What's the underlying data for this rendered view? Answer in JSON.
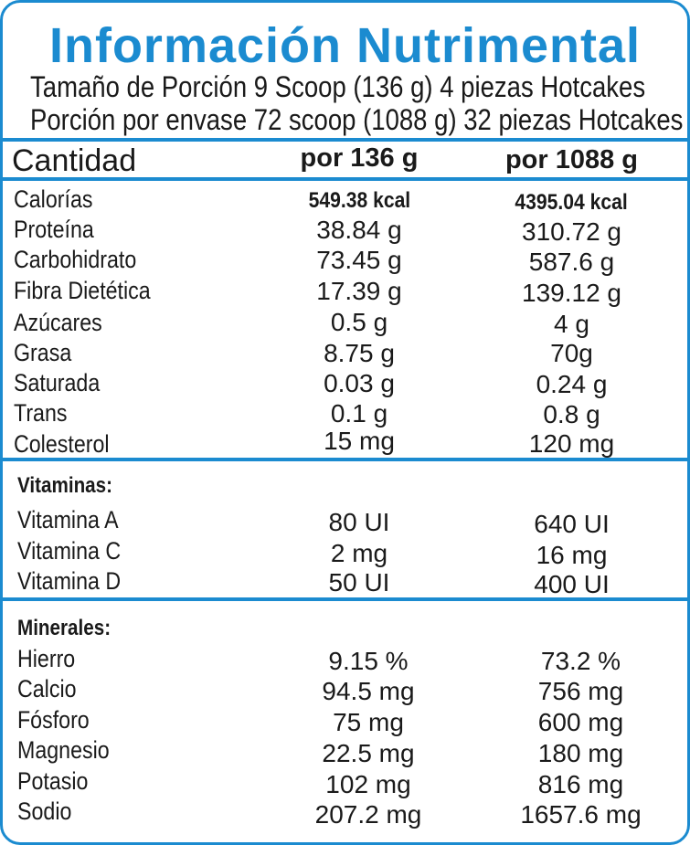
{
  "title": "Información Nutrimental",
  "serving_size": "Tamaño de Porción 9 Scoop (136 g) 4 piezas Hotcakes",
  "servings_per_container": "Porción por envase 72 scoop (1088 g) 32 piezas Hotcakes",
  "header": {
    "label": "Cantidad",
    "col1": "por 136 g",
    "col2": "por 1088 g"
  },
  "nutrients": [
    {
      "name": "Calorías",
      "per136": "549.38 kcal",
      "per1088": "4395.04 kcal"
    },
    {
      "name": "Proteína",
      "per136": "38.84 g",
      "per1088": "310.72 g"
    },
    {
      "name": "Carbohidrato",
      "per136": "73.45 g",
      "per1088": "587.6 g"
    },
    {
      "name": "Fibra Dietética",
      "per136": "17.39 g",
      "per1088": "139.12 g"
    },
    {
      "name": "Azúcares",
      "per136": "0.5 g",
      "per1088": "4 g"
    },
    {
      "name": "Grasa",
      "per136": "8.75 g",
      "per1088": "70g"
    },
    {
      "name": "Saturada",
      "per136": "0.03 g",
      "per1088": "0.24 g"
    },
    {
      "name": "Trans",
      "per136": "0.1 g",
      "per1088": "0.8 g"
    },
    {
      "name": "Colesterol",
      "per136": "15 mg",
      "per1088": "120 mg"
    }
  ],
  "vitamins": {
    "heading": "Vitaminas:",
    "items": [
      {
        "name": "Vitamina A",
        "per136": "80 UI",
        "per1088": "640 UI"
      },
      {
        "name": "Vitamina C",
        "per136": "2 mg",
        "per1088": "16 mg"
      },
      {
        "name": "Vitamina D",
        "per136": "50 UI",
        "per1088": "400 UI"
      }
    ]
  },
  "minerals": {
    "heading": "Minerales:",
    "items": [
      {
        "name": "Hierro",
        "per136": "9.15 %",
        "per1088": "73.2 %"
      },
      {
        "name": "Calcio",
        "per136": "94.5 mg",
        "per1088": "756 mg"
      },
      {
        "name": "Fósforo",
        "per136": "75 mg",
        "per1088": "600 mg"
      },
      {
        "name": "Magnesio",
        "per136": "22.5 mg",
        "per1088": "180 mg"
      },
      {
        "name": "Potasio",
        "per136": "102 mg",
        "per1088": "816 mg"
      },
      {
        "name": "Sodio",
        "per136": "207.2 mg",
        "per1088": "1657.6 mg"
      }
    ]
  },
  "colors": {
    "accent": "#1b8bd0",
    "text": "#1a1a1a"
  }
}
